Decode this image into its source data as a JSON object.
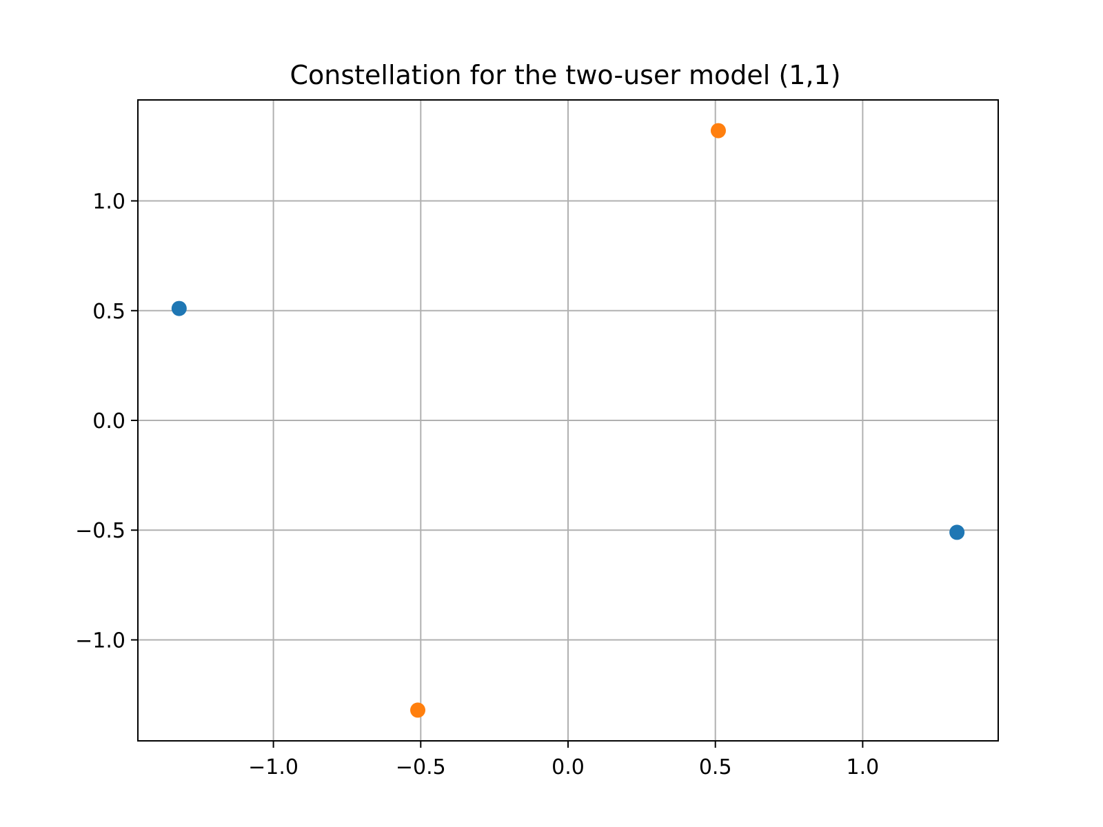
{
  "chart_data": {
    "type": "scatter",
    "title": "Constellation for the two-user model (1,1)",
    "xlabel": "",
    "ylabel": "",
    "xlim": [
      -1.46,
      1.46
    ],
    "ylim": [
      -1.46,
      1.46
    ],
    "grid": true,
    "x_ticks": [
      -1.0,
      -0.5,
      0.0,
      0.5,
      1.0
    ],
    "y_ticks": [
      -1.0,
      -0.5,
      0.0,
      0.5,
      1.0
    ],
    "x_tick_labels": [
      "−1.0",
      "−0.5",
      "0.0",
      "0.5",
      "1.0"
    ],
    "y_tick_labels": [
      "−1.0",
      "−0.5",
      "0.0",
      "0.5",
      "1.0"
    ],
    "series": [
      {
        "color": "#1f77b4",
        "points": [
          {
            "x": -1.32,
            "y": 0.51
          },
          {
            "x": 1.32,
            "y": -0.51
          }
        ]
      },
      {
        "color": "#ff7f0e",
        "points": [
          {
            "x": 0.51,
            "y": 1.32
          },
          {
            "x": -0.51,
            "y": -1.32
          }
        ]
      }
    ]
  }
}
